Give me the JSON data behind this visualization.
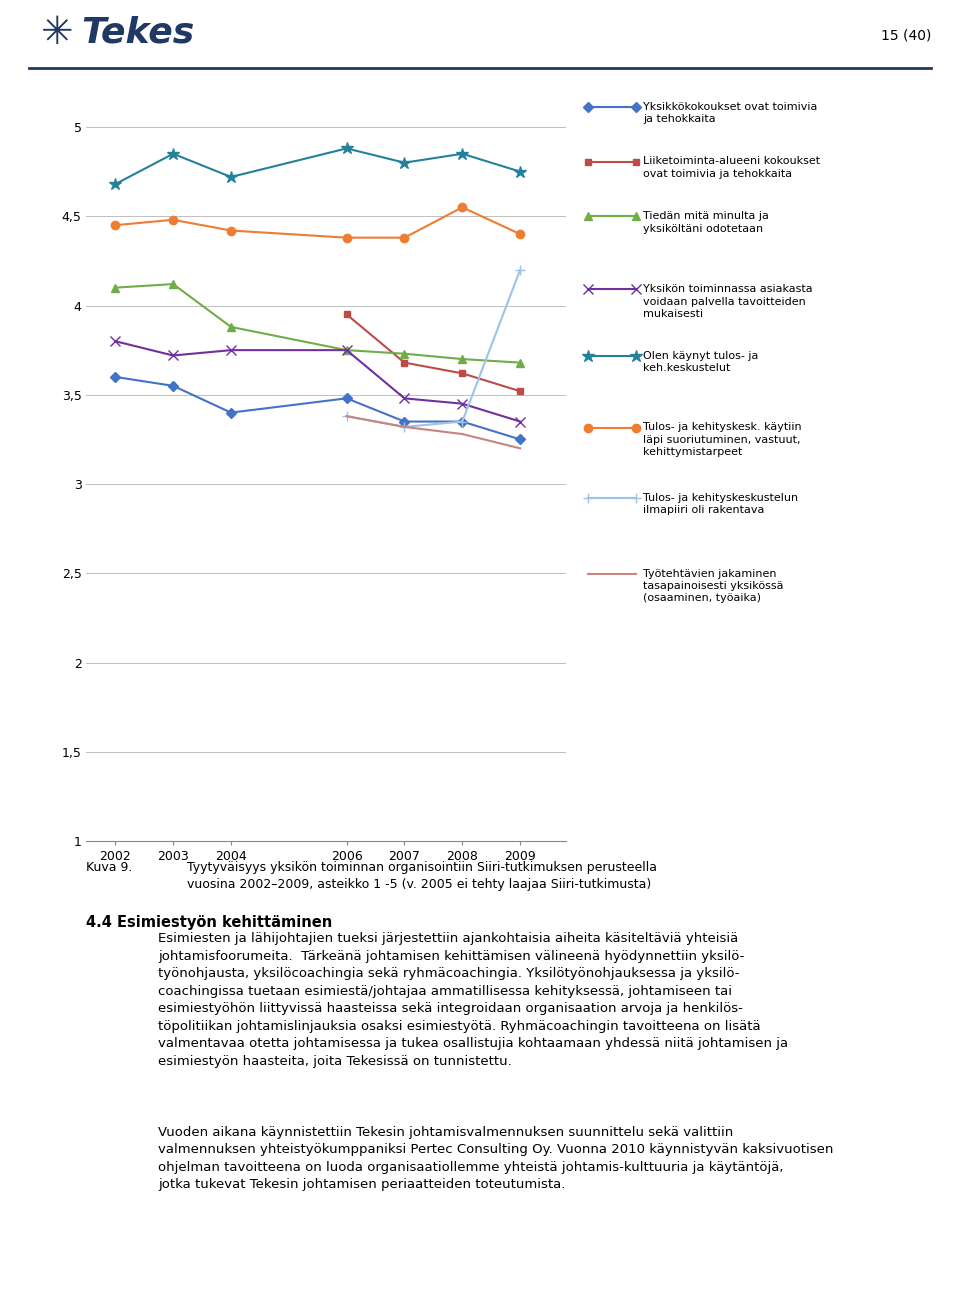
{
  "x_values": [
    2002,
    2003,
    2004,
    2006,
    2007,
    2008,
    2009
  ],
  "series": [
    {
      "label": "Yksikkökokoukset ovat toimivia\nja tehokkaita",
      "color": "#4472C4",
      "marker": "D",
      "markersize": 5,
      "linewidth": 1.5,
      "values": [
        3.6,
        3.55,
        3.4,
        3.48,
        3.35,
        3.35,
        3.25
      ]
    },
    {
      "label": "Liiketoiminta-alueeni kokoukset\novat toimivia ja tehokkaita",
      "color": "#BE4B48",
      "marker": "s",
      "markersize": 5,
      "linewidth": 1.5,
      "values": [
        null,
        null,
        null,
        3.95,
        3.68,
        3.62,
        3.52
      ]
    },
    {
      "label": "Tiedän mitä minulta ja\nyksiköltäni odotetaan",
      "color": "#70AD47",
      "marker": "^",
      "markersize": 6,
      "linewidth": 1.5,
      "values": [
        4.1,
        4.12,
        3.88,
        3.75,
        3.73,
        3.7,
        3.68
      ]
    },
    {
      "label": "Yksikön toiminnassa asiakasta\nvoidaan palvella tavoitteiden\nmukaisesti",
      "color": "#7030A0",
      "marker": "x",
      "markersize": 7,
      "linewidth": 1.5,
      "values": [
        3.8,
        3.72,
        3.75,
        3.75,
        3.48,
        3.45,
        3.35
      ]
    },
    {
      "label": "Olen käynyt tulos- ja\nkeh.keskustelut",
      "color": "#23819C",
      "marker": "*",
      "markersize": 9,
      "linewidth": 1.5,
      "values": [
        4.68,
        4.85,
        4.72,
        4.88,
        4.8,
        4.85,
        4.75
      ]
    },
    {
      "label": "Tulos- ja kehityskesk. käytiin\nläpi suoriutuminen, vastuut,\nkehittymistarpeet",
      "color": "#ED7D31",
      "marker": "o",
      "markersize": 6,
      "linewidth": 1.5,
      "values": [
        4.45,
        4.48,
        4.42,
        4.38,
        4.38,
        4.55,
        4.4
      ]
    },
    {
      "label": "Tulos- ja kehityskeskustelun\nilmapiiri oli rakentava",
      "color": "#9DC3E6",
      "marker": "+",
      "markersize": 7,
      "linewidth": 1.5,
      "values": [
        null,
        null,
        null,
        3.38,
        3.32,
        3.35,
        4.2
      ]
    },
    {
      "label": "Työtehtävien jakaminen\ntasapainoisesti yksikössä\n(osaaminen, työaika)",
      "color": "#C9847C",
      "marker": "",
      "markersize": 0,
      "linewidth": 1.5,
      "values": [
        null,
        null,
        null,
        3.38,
        3.32,
        3.28,
        3.2
      ]
    }
  ],
  "ylim": [
    1.0,
    5.2
  ],
  "yticks": [
    1.0,
    1.5,
    2.0,
    2.5,
    3.0,
    3.5,
    4.0,
    4.5,
    5.0
  ],
  "ytick_labels": [
    "1",
    "1,5",
    "2",
    "2,5",
    "3",
    "3,5",
    "4",
    "4,5",
    "5"
  ],
  "background_color": "#FFFFFF",
  "plot_area_color": "#FFFFFF",
  "grid_color": "#BFBFBF",
  "figure_title": "15 (40)",
  "caption_kuva": "Kuva 9.",
  "caption_text": "Tyytyväisyys yksikön toiminnan organisointiin Siiri-tutkimuksen perusteella\nvuosina 2002–2009, asteikko 1 -5 (v. 2005 ei tehty laajaa Siiri-tutkimusta)",
  "section_title": "4.4 Esimiestyön kehittäminen",
  "body_para1": "Esimiesten ja lähijohtajien tueksi järjestettiin ajankohtaisia aiheita käsiteltäviä yhteisiä johtamisfoorumeita.  Tärkeänä johtamisen kehittämisen välineenä hyödynnettiin yksilö-työnohjausta, yksilöcoachingia sekä ryhmäcoachingia. Yksilötyönohjauksessa ja yksilö-coachingissa tuetaan esimiestä/johtajaa ammatillisessa kehityksessä, johtamiseen tai esimiestyöhön liittyvissä haasteissa sekä integroidaan organisaation arvoja ja henkilös-töpolitiikan johtamislinjauksia osaksi esimiestyötä. Ryhmäcoachingin tavoitteena on lisätä valmentavaa otetta johtamisessa ja tukea osallistujia kohtaamaan yhdessä niitä johtamisen ja esimiestyön haasteita, joita Tekesissä on tunnistettu.",
  "body_para2": "Vuoden aikana käynnistettiin Tekesin johtamisvalmennuksen suunnittelu sekä valittiin valmennuksen yhteistyökumppaniksi Pertec Consulting Oy. Vuonna 2010 käynnistyvän kaksivuotisen ohjelman tavoitteena on luoda organisaatiollemme yhteistä johtamis-kulttuuria ja käytäntöjä, jotka tukevat Tekesin johtamisen periaatteiden toteutumista."
}
